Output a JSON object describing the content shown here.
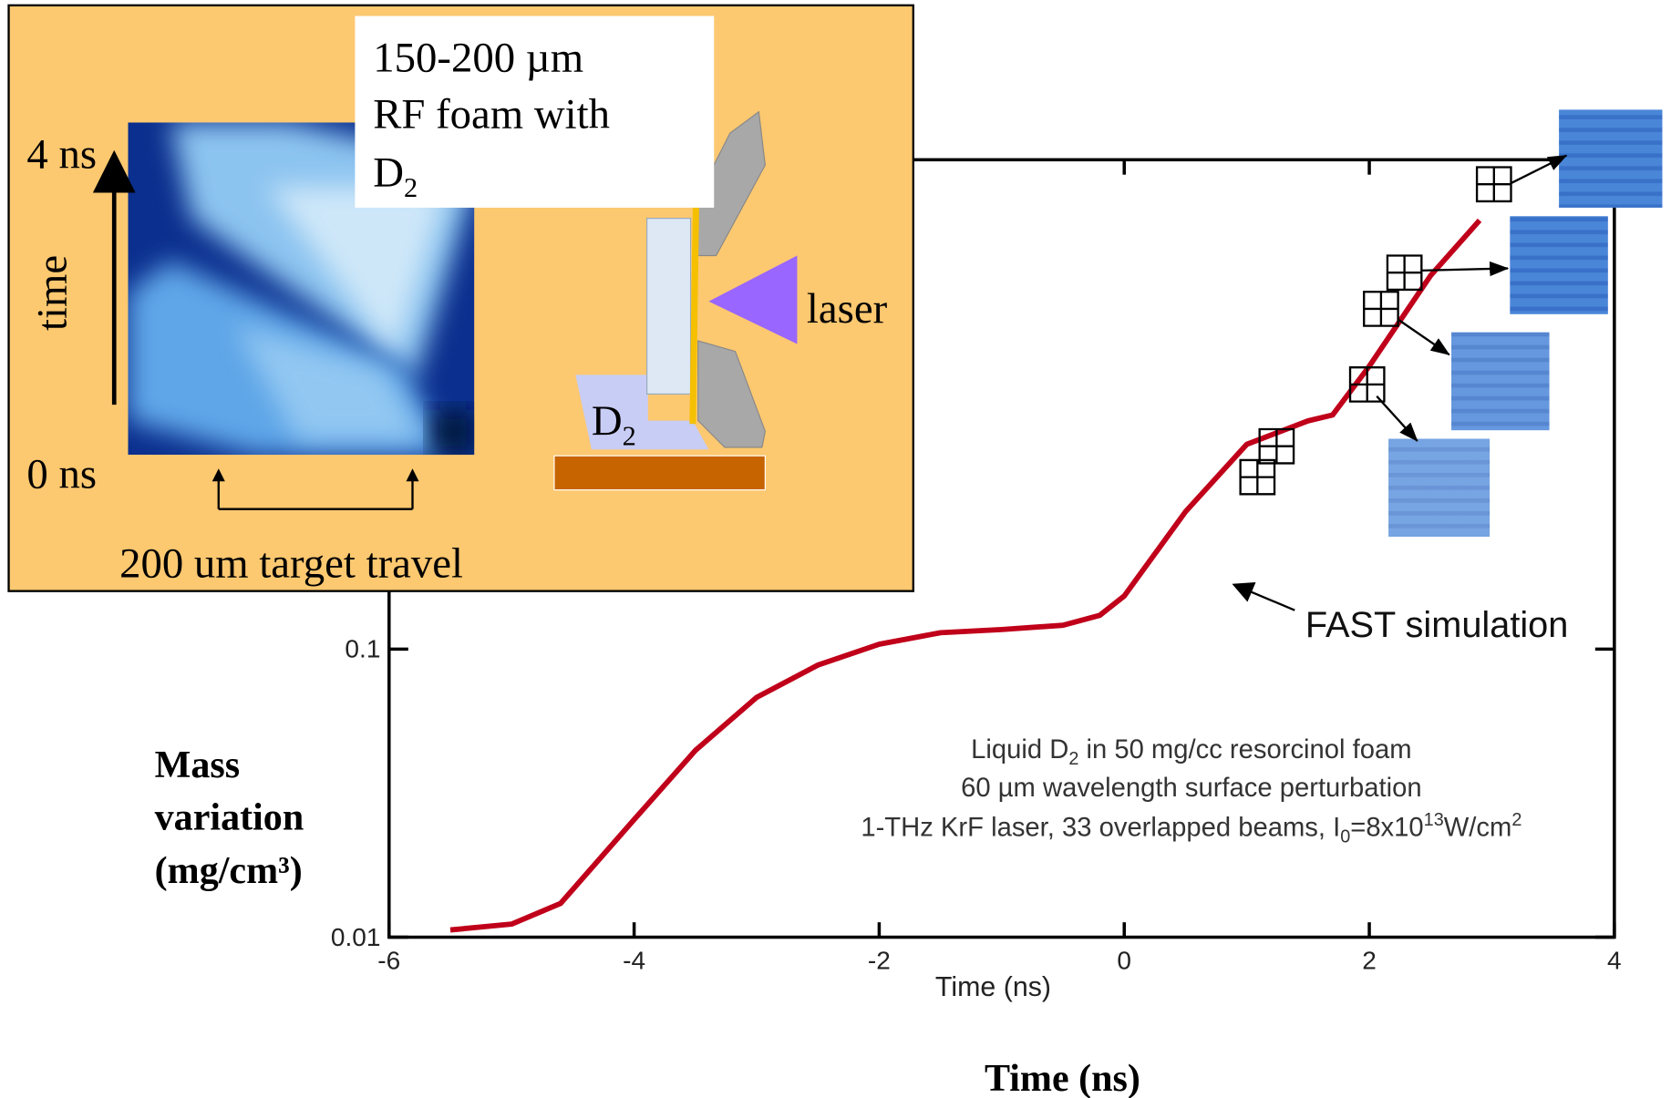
{
  "chart_data": {
    "type": "line",
    "x_label": "Time (ns)",
    "outer_x_label": "Time (ns)",
    "y_label": [
      "Mass",
      "variation",
      "(mg/cm³)"
    ],
    "x": [
      -5.5,
      -5.0,
      -4.6,
      -4.0,
      -3.5,
      -3.0,
      -2.5,
      -2.0,
      -1.5,
      -1.0,
      -0.5,
      -0.2,
      0,
      0.5,
      1.0,
      1.5,
      1.7,
      2.0,
      2.5,
      2.9
    ],
    "values": [
      0.0106,
      0.0111,
      0.0131,
      0.0256,
      0.0445,
      0.068,
      0.088,
      0.104,
      0.114,
      0.117,
      0.121,
      0.131,
      0.153,
      0.3,
      0.514,
      0.62,
      0.65,
      0.96,
      1.98,
      3.08
    ],
    "color": "#c0001a",
    "xlim": [
      -6,
      4
    ],
    "ylim": [
      0.01,
      5
    ],
    "xticks": [
      -6,
      -4,
      -2,
      0,
      2,
      4
    ],
    "yticks": [
      0.01,
      0.1
    ],
    "log_y": true,
    "annotation": "FAST simulation",
    "note": [
      [
        "Liquid D",
        "2",
        " in 50 mg/cc resorcinol foam"
      ],
      [
        "60 µm wavelength surface perturbation"
      ],
      [
        "1-THz KrF laser, 33 overlapped beams, I",
        "0",
        "=8x10",
        "13",
        "W/cm",
        "2"
      ]
    ]
  },
  "inset": {
    "label": [
      "150-200 µm",
      "RF foam with",
      "D",
      "2"
    ],
    "time_top": "4 ns",
    "time_bottom": "0 ns",
    "time_axis": "time",
    "laser": "laser",
    "d2": [
      "D",
      "2"
    ],
    "travel": "200 um target travel"
  }
}
